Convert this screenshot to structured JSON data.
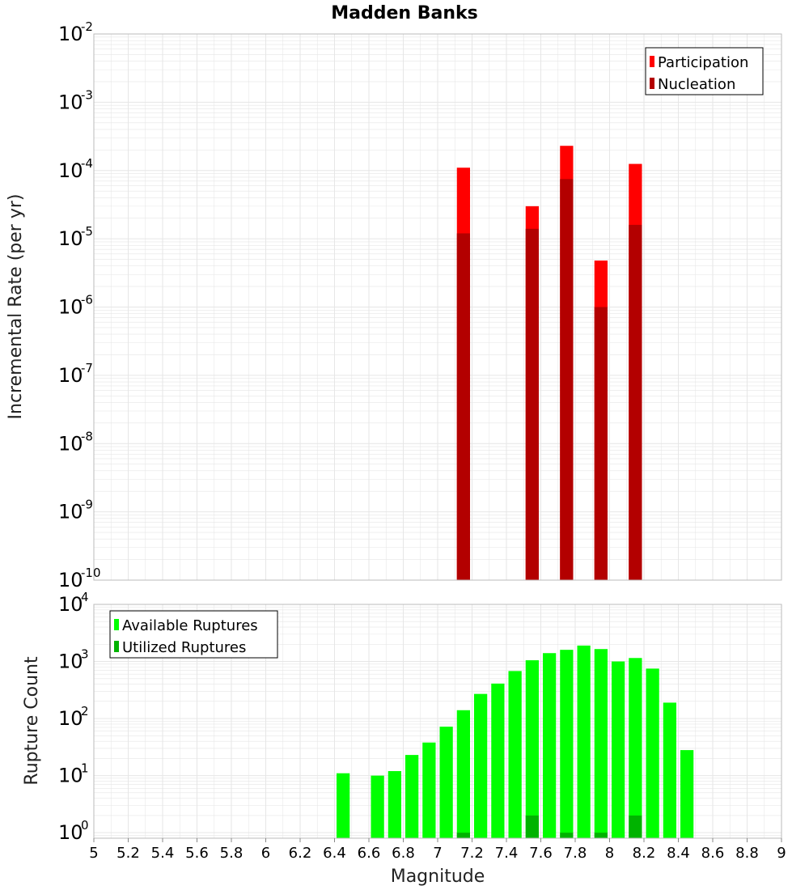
{
  "title": "Madden Banks",
  "xlabel": "Magnitude",
  "colors": {
    "participation": "#ff0000",
    "nucleation": "#b30000",
    "available": "#00ff00",
    "utilized": "#00b300",
    "grid": "#e6e6e6",
    "frame": "#bbbbbb"
  },
  "chart_data": [
    {
      "type": "bar",
      "ylabel": "Incremental Rate (per yr)",
      "yscale": "log",
      "ylim": [
        1e-10,
        0.01
      ],
      "xlim": [
        5,
        9
      ],
      "bin_width": 0.1,
      "legend": "top-right",
      "grid": true,
      "series": [
        {
          "name": "Participation",
          "x": [
            7.15,
            7.55,
            7.75,
            7.95,
            8.15
          ],
          "values": [
            0.00011,
            3e-05,
            0.00023,
            4.8e-06,
            0.000125
          ]
        },
        {
          "name": "Nucleation",
          "x": [
            7.15,
            7.55,
            7.75,
            7.95,
            8.15
          ],
          "values": [
            1.2e-05,
            1.4e-05,
            7.5e-05,
            1e-06,
            1.6e-05
          ]
        }
      ]
    },
    {
      "type": "bar",
      "ylabel": "Rupture Count",
      "yscale": "log",
      "ylim": [
        0.8,
        10000
      ],
      "xlim": [
        5,
        9
      ],
      "bin_width": 0.1,
      "legend": "top-left",
      "grid": true,
      "series": [
        {
          "name": "Available Ruptures",
          "x": [
            6.45,
            6.65,
            6.75,
            6.85,
            6.95,
            7.05,
            7.15,
            7.25,
            7.35,
            7.45,
            7.55,
            7.65,
            7.75,
            7.85,
            7.95,
            8.05,
            8.15,
            8.25,
            8.35,
            8.45
          ],
          "values": [
            11,
            10,
            12,
            23,
            38,
            72,
            140,
            270,
            410,
            680,
            1050,
            1400,
            1600,
            1900,
            1650,
            1000,
            1150,
            750,
            190,
            28
          ]
        },
        {
          "name": "Utilized Ruptures",
          "x": [
            7.15,
            7.55,
            7.75,
            7.95,
            8.15
          ],
          "values": [
            1,
            2,
            1,
            1,
            2
          ]
        }
      ]
    }
  ],
  "xticks": [
    "5",
    "5.2",
    "5.4",
    "5.6",
    "5.8",
    "6",
    "6.2",
    "6.4",
    "6.6",
    "6.8",
    "7",
    "7.2",
    "7.4",
    "7.6",
    "7.8",
    "8",
    "8.2",
    "8.4",
    "8.6",
    "8.8",
    "9"
  ],
  "yticks_top": [
    {
      "base": "10",
      "exp": "-10"
    },
    {
      "base": "10",
      "exp": "-9"
    },
    {
      "base": "10",
      "exp": "-8"
    },
    {
      "base": "10",
      "exp": "-7"
    },
    {
      "base": "10",
      "exp": "-6"
    },
    {
      "base": "10",
      "exp": "-5"
    },
    {
      "base": "10",
      "exp": "-4"
    },
    {
      "base": "10",
      "exp": "-3"
    },
    {
      "base": "10",
      "exp": "-2"
    }
  ],
  "yticks_bottom": [
    {
      "base": "10",
      "exp": "0"
    },
    {
      "base": "10",
      "exp": "1"
    },
    {
      "base": "10",
      "exp": "2"
    },
    {
      "base": "10",
      "exp": "3"
    },
    {
      "base": "10",
      "exp": "4"
    }
  ]
}
